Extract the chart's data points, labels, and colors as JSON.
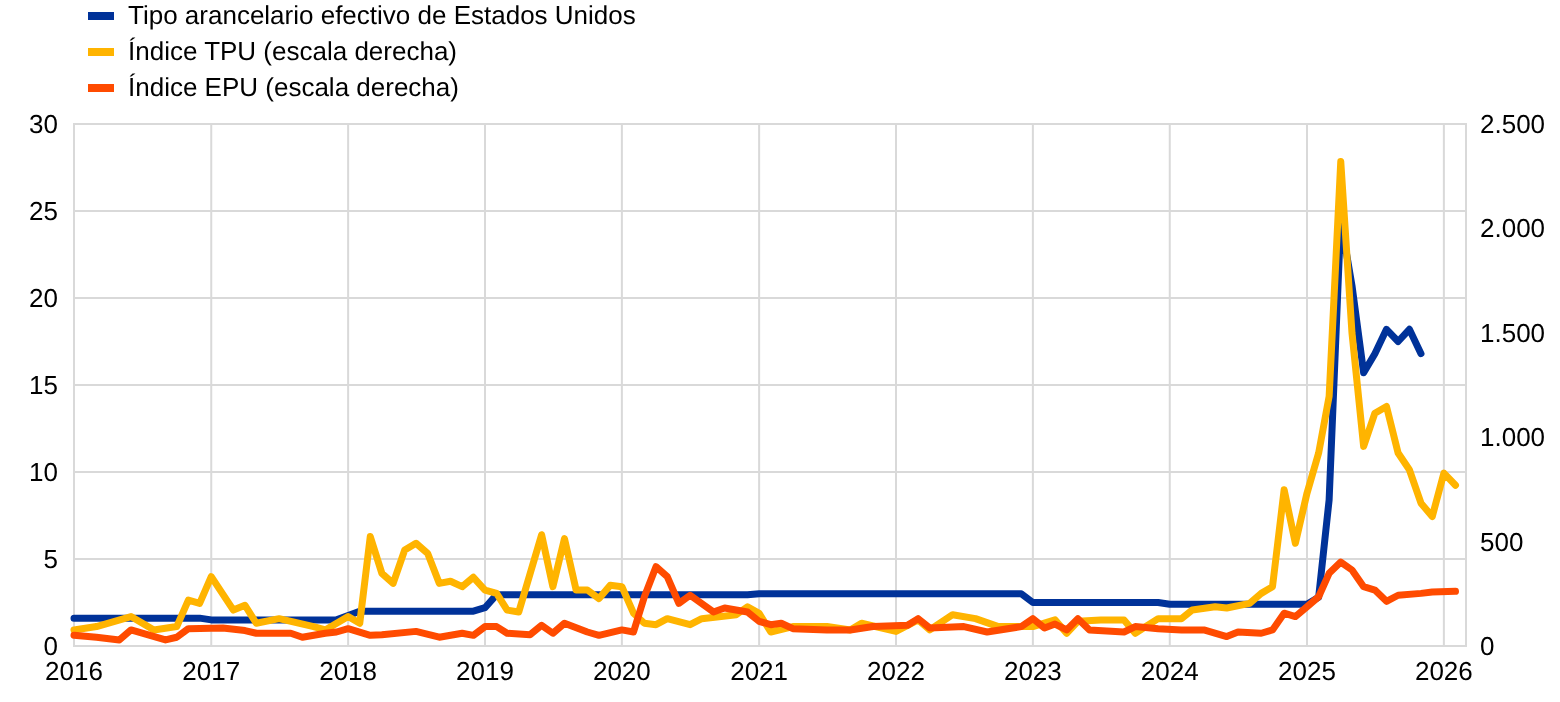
{
  "chart_data": {
    "type": "line",
    "legend": "top left",
    "grid": true,
    "line_style": "solid",
    "marker": "none",
    "xlim": [
      "2016-01",
      "2026-03"
    ],
    "xticks": [
      {
        "value": "2016-01",
        "label": "2016"
      },
      {
        "value": "2017-01",
        "label": "2017"
      },
      {
        "value": "2018-01",
        "label": "2018"
      },
      {
        "value": "2019-01",
        "label": "2019"
      },
      {
        "value": "2020-01",
        "label": "2020"
      },
      {
        "value": "2021-01",
        "label": "2021"
      },
      {
        "value": "2022-01",
        "label": "2022"
      },
      {
        "value": "2023-01",
        "label": "2023"
      },
      {
        "value": "2024-01",
        "label": "2024"
      },
      {
        "value": "2025-01",
        "label": "2025"
      },
      {
        "value": "2026-01",
        "label": "2026"
      }
    ],
    "ylim": [
      0,
      30
    ],
    "yticks": [
      0,
      5,
      10,
      15,
      20,
      25,
      30
    ],
    "y2lim": [
      0,
      2500
    ],
    "y2ticks": [
      {
        "value": 0,
        "label": "0"
      },
      {
        "value": 500,
        "label": "500"
      },
      {
        "value": 1000,
        "label": "1.000"
      },
      {
        "value": 1500,
        "label": "1.500"
      },
      {
        "value": 2000,
        "label": "2.000"
      },
      {
        "value": 2500,
        "label": "2.500"
      }
    ],
    "series": [
      {
        "name": "Tipo arancelario efectivo de Estados Unidos",
        "color": "#003299",
        "x": [
          "2016-01",
          "2016-12",
          "2017-01",
          "2017-12",
          "2018-02",
          "2018-12",
          "2019-01",
          "2019-02",
          "2020-12",
          "2021-01",
          "2022-12",
          "2023-01",
          "2023-12",
          "2024-01",
          "2025-01",
          "2025-02",
          "2025-03",
          "2025-04",
          "2025-05",
          "2025-06",
          "2025-07",
          "2025-08",
          "2025-09",
          "2025-10",
          "2025-11"
        ],
        "values": [
          1.6,
          1.6,
          1.5,
          1.5,
          2.0,
          2.0,
          2.2,
          2.95,
          2.95,
          3.0,
          3.0,
          2.5,
          2.5,
          2.4,
          2.4,
          2.8,
          8.4,
          24.5,
          20.7,
          15.7,
          16.8,
          18.2,
          17.5,
          18.2,
          16.8
        ]
      },
      {
        "name": "Índice TPU (escala derecha)",
        "color": "#ffb400",
        "axis": "y2",
        "x": [
          "2016-01",
          "2016-03",
          "2016-06",
          "2016-08",
          "2016-10",
          "2016-11",
          "2016-12",
          "2017-01",
          "2017-03",
          "2017-04",
          "2017-05",
          "2017-07",
          "2017-10",
          "2017-11",
          "2018-01",
          "2018-02",
          "2018-03",
          "2018-04",
          "2018-05",
          "2018-06",
          "2018-07",
          "2018-08",
          "2018-09",
          "2018-10",
          "2018-11",
          "2018-12",
          "2019-01",
          "2019-02",
          "2019-03",
          "2019-04",
          "2019-06",
          "2019-07",
          "2019-08",
          "2019-09",
          "2019-10",
          "2019-11",
          "2019-12",
          "2020-01",
          "2020-02",
          "2020-03",
          "2020-04",
          "2020-05",
          "2020-07",
          "2020-08",
          "2020-11",
          "2020-12",
          "2021-01",
          "2021-02",
          "2021-04",
          "2021-07",
          "2021-09",
          "2021-10",
          "2022-01",
          "2022-03",
          "2022-04",
          "2022-06",
          "2022-08",
          "2022-10",
          "2023-01",
          "2023-03",
          "2023-04",
          "2023-05",
          "2023-07",
          "2023-09",
          "2023-10",
          "2023-12",
          "2024-02",
          "2024-03",
          "2024-05",
          "2024-06",
          "2024-08",
          "2024-09",
          "2024-10",
          "2024-11",
          "2024-12",
          "2025-01",
          "2025-02",
          "2025-03",
          "2025-04",
          "2025-05",
          "2025-06",
          "2025-07",
          "2025-08",
          "2025-09",
          "2025-10",
          "2025-11",
          "2025-12",
          "2026-01",
          "2026-02"
        ],
        "values": [
          77,
          93,
          141,
          77,
          93,
          220,
          204,
          332,
          172,
          195,
          109,
          131,
          93,
          77,
          141,
          109,
          524,
          348,
          300,
          460,
          492,
          444,
          300,
          310,
          284,
          329,
          268,
          252,
          172,
          163,
          533,
          284,
          514,
          268,
          268,
          227,
          291,
          284,
          157,
          109,
          102,
          131,
          102,
          131,
          150,
          188,
          157,
          67,
          93,
          93,
          77,
          109,
          70,
          125,
          77,
          150,
          131,
          93,
          93,
          125,
          61,
          118,
          125,
          125,
          61,
          131,
          131,
          172,
          188,
          182,
          204,
          252,
          284,
          748,
          492,
          732,
          924,
          1195,
          2320,
          1498,
          956,
          1115,
          1147,
          924,
          844,
          684,
          620,
          828,
          770
        ]
      },
      {
        "name": "Índice EPU (escala derecha)",
        "color": "#ff4b00",
        "axis": "y2",
        "x": [
          "2016-01",
          "2016-03",
          "2016-05",
          "2016-06",
          "2016-09",
          "2016-10",
          "2016-11",
          "2017-02",
          "2017-04",
          "2017-05",
          "2017-08",
          "2017-09",
          "2017-11",
          "2017-12",
          "2018-01",
          "2018-03",
          "2018-04",
          "2018-07",
          "2018-09",
          "2018-11",
          "2018-12",
          "2019-01",
          "2019-02",
          "2019-03",
          "2019-05",
          "2019-06",
          "2019-07",
          "2019-08",
          "2019-10",
          "2019-11",
          "2020-01",
          "2020-02",
          "2020-03",
          "2020-04",
          "2020-05",
          "2020-06",
          "2020-07",
          "2020-09",
          "2020-10",
          "2020-12",
          "2021-01",
          "2021-02",
          "2021-03",
          "2021-04",
          "2021-07",
          "2021-09",
          "2021-11",
          "2022-02",
          "2022-03",
          "2022-04",
          "2022-07",
          "2022-09",
          "2022-12",
          "2023-01",
          "2023-02",
          "2023-03",
          "2023-04",
          "2023-05",
          "2023-06",
          "2023-09",
          "2023-10",
          "2023-12",
          "2024-02",
          "2024-04",
          "2024-06",
          "2024-07",
          "2024-09",
          "2024-10",
          "2024-11",
          "2024-12",
          "2025-01",
          "2025-02",
          "2025-03",
          "2025-04",
          "2025-05",
          "2025-06",
          "2025-07",
          "2025-08",
          "2025-09",
          "2025-11",
          "2025-12",
          "2026-02"
        ],
        "values": [
          51,
          42,
          29,
          77,
          29,
          42,
          83,
          86,
          74,
          61,
          61,
          42,
          61,
          67,
          83,
          51,
          54,
          70,
          42,
          61,
          51,
          93,
          93,
          61,
          54,
          99,
          61,
          109,
          67,
          51,
          77,
          67,
          236,
          380,
          332,
          204,
          243,
          163,
          182,
          163,
          118,
          102,
          109,
          83,
          77,
          77,
          93,
          99,
          131,
          86,
          93,
          67,
          93,
          131,
          86,
          105,
          77,
          131,
          77,
          67,
          93,
          83,
          77,
          77,
          45,
          67,
          61,
          77,
          157,
          141,
          188,
          236,
          348,
          402,
          364,
          284,
          268,
          214,
          243,
          252,
          259,
          262
        ]
      }
    ]
  }
}
